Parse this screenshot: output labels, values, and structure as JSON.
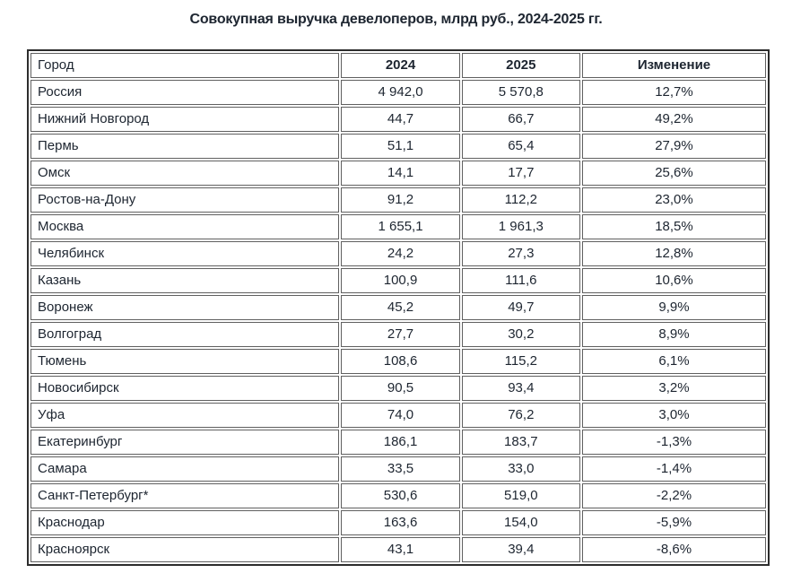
{
  "title": "Совокупная выручка девелоперов, млрд руб., 2024-2025 гг.",
  "colors": {
    "text": "#1d2530",
    "outer_border": "#2d2d2d",
    "cell_border": "#606060",
    "background": "#ffffff"
  },
  "table": {
    "columns": [
      "Город",
      "2024",
      "2025",
      "Изменение"
    ],
    "rows": [
      {
        "city": "Россия",
        "v2024": "4 942,0",
        "v2025": "5 570,8",
        "change": "12,7%"
      },
      {
        "city": "Нижний Новгород",
        "v2024": "44,7",
        "v2025": "66,7",
        "change": "49,2%"
      },
      {
        "city": "Пермь",
        "v2024": "51,1",
        "v2025": "65,4",
        "change": "27,9%"
      },
      {
        "city": "Омск",
        "v2024": "14,1",
        "v2025": "17,7",
        "change": "25,6%"
      },
      {
        "city": "Ростов-на-Дону",
        "v2024": "91,2",
        "v2025": "112,2",
        "change": "23,0%"
      },
      {
        "city": "Москва",
        "v2024": "1 655,1",
        "v2025": "1 961,3",
        "change": "18,5%"
      },
      {
        "city": "Челябинск",
        "v2024": "24,2",
        "v2025": "27,3",
        "change": "12,8%"
      },
      {
        "city": "Казань",
        "v2024": "100,9",
        "v2025": "111,6",
        "change": "10,6%"
      },
      {
        "city": "Воронеж",
        "v2024": "45,2",
        "v2025": "49,7",
        "change": "9,9%"
      },
      {
        "city": "Волгоград",
        "v2024": "27,7",
        "v2025": "30,2",
        "change": "8,9%"
      },
      {
        "city": "Тюмень",
        "v2024": "108,6",
        "v2025": "115,2",
        "change": "6,1%"
      },
      {
        "city": "Новосибирск",
        "v2024": "90,5",
        "v2025": "93,4",
        "change": "3,2%"
      },
      {
        "city": "Уфа",
        "v2024": "74,0",
        "v2025": "76,2",
        "change": "3,0%"
      },
      {
        "city": "Екатеринбург",
        "v2024": "186,1",
        "v2025": "183,7",
        "change": "-1,3%"
      },
      {
        "city": "Самара",
        "v2024": "33,5",
        "v2025": "33,0",
        "change": "-1,4%"
      },
      {
        "city": "Санкт-Петербург*",
        "v2024": "530,6",
        "v2025": "519,0",
        "change": "-2,2%"
      },
      {
        "city": "Краснодар",
        "v2024": "163,6",
        "v2025": "154,0",
        "change": "-5,9%"
      },
      {
        "city": "Красноярск",
        "v2024": "43,1",
        "v2025": "39,4",
        "change": "-8,6%"
      }
    ]
  },
  "chart_data": {
    "type": "table",
    "title": "Совокупная выручка девелоперов, млрд руб., 2024-2025 гг.",
    "columns": [
      "Город",
      "2024",
      "2025",
      "Изменение"
    ],
    "categories": [
      "Россия",
      "Нижний Новгород",
      "Пермь",
      "Омск",
      "Ростов-на-Дону",
      "Москва",
      "Челябинск",
      "Казань",
      "Воронеж",
      "Волгоград",
      "Тюмень",
      "Новосибирск",
      "Уфа",
      "Екатеринбург",
      "Самара",
      "Санкт-Петербург*",
      "Краснодар",
      "Красноярск"
    ],
    "series": [
      {
        "name": "2024",
        "values": [
          4942.0,
          44.7,
          51.1,
          14.1,
          91.2,
          1655.1,
          24.2,
          100.9,
          45.2,
          27.7,
          108.6,
          90.5,
          74.0,
          186.1,
          33.5,
          530.6,
          163.6,
          43.1
        ]
      },
      {
        "name": "2025",
        "values": [
          5570.8,
          66.7,
          65.4,
          17.7,
          112.2,
          1961.3,
          27.3,
          111.6,
          49.7,
          30.2,
          115.2,
          93.4,
          76.2,
          183.7,
          33.0,
          519.0,
          154.0,
          39.4
        ]
      },
      {
        "name": "Изменение, %",
        "values": [
          12.7,
          49.2,
          27.9,
          25.6,
          23.0,
          18.5,
          12.8,
          10.6,
          9.9,
          8.9,
          6.1,
          3.2,
          3.0,
          -1.3,
          -1.4,
          -2.2,
          -5.9,
          -8.6
        ]
      }
    ]
  }
}
